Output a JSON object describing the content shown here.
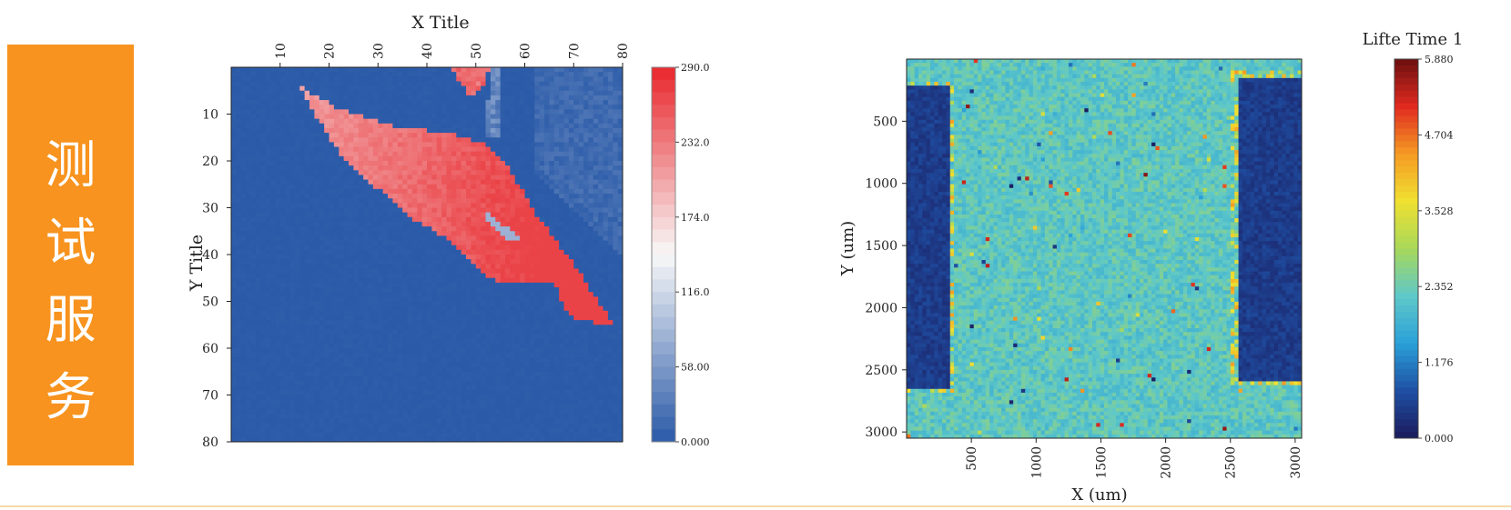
{
  "banner": {
    "chars": [
      "测",
      "试",
      "服",
      "务"
    ],
    "color": "#f7931e"
  },
  "chart_data": [
    {
      "type": "heatmap",
      "title": "",
      "xlabel": "X Title",
      "ylabel": "Y Title",
      "xaxis_position": "top",
      "xlim": [
        0,
        80
      ],
      "ylim": [
        0,
        80
      ],
      "yaxis_inverted": true,
      "x_ticks": [
        10,
        20,
        30,
        40,
        50,
        60,
        70,
        80
      ],
      "y_ticks": [
        10,
        20,
        30,
        40,
        50,
        60,
        70,
        80
      ],
      "colorbar": {
        "min": 0,
        "max": 290,
        "tick_labels": [
          "290.0",
          "232.0",
          "174.0",
          "116.0",
          "58.00",
          "0.000"
        ],
        "colors": [
          "#2a5aa8",
          "#f8f8f8",
          "#e8262b"
        ]
      },
      "background_value": 0,
      "regions": [
        {
          "name": "main-crystal",
          "value_range": [
            190,
            270
          ],
          "outline": [
            [
              14,
              4
            ],
            [
              22,
              9
            ],
            [
              35,
              13
            ],
            [
              45,
              14
            ],
            [
              51,
              16
            ],
            [
              56,
              20
            ],
            [
              62,
              31
            ],
            [
              70,
              42
            ],
            [
              77,
              53
            ],
            [
              78,
              55
            ],
            [
              70,
              54
            ],
            [
              68,
              51
            ],
            [
              66,
              46
            ],
            [
              56,
              46
            ],
            [
              53,
              45
            ],
            [
              45,
              37
            ],
            [
              38,
              33
            ],
            [
              30,
              26
            ],
            [
              22,
              18
            ],
            [
              17,
              10
            ]
          ]
        },
        {
          "name": "top-tip",
          "value_range": [
            220,
            260
          ],
          "outline": [
            [
              45,
              0
            ],
            [
              53,
              0
            ],
            [
              51,
              5
            ],
            [
              49,
              7
            ]
          ]
        },
        {
          "name": "faint-streak",
          "value_range": [
            20,
            60
          ],
          "outline": [
            [
              53,
              0
            ],
            [
              55,
              0
            ],
            [
              55,
              15
            ],
            [
              52,
              15
            ]
          ]
        },
        {
          "name": "right-noise-band",
          "value_range": [
            5,
            25
          ],
          "outline": [
            [
              62,
              0
            ],
            [
              80,
              0
            ],
            [
              80,
              40
            ],
            [
              62,
              22
            ]
          ]
        }
      ],
      "holes": [
        {
          "name": "inner-hole",
          "value": 80,
          "outline": [
            [
              52,
              31
            ],
            [
              56,
              34
            ],
            [
              60,
              37
            ],
            [
              57,
              37
            ],
            [
              53,
              34
            ]
          ]
        }
      ]
    },
    {
      "type": "heatmap",
      "title": "",
      "xlabel": "X (um)",
      "ylabel": "Y (um)",
      "xlim": [
        0,
        3050
      ],
      "ylim": [
        0,
        3050
      ],
      "yaxis_inverted": true,
      "x_ticks": [
        500,
        1000,
        1500,
        2000,
        2500,
        3000
      ],
      "y_ticks": [
        500,
        1000,
        1500,
        2000,
        2500,
        3000
      ],
      "colorbar": {
        "label": "Lifte Time 1",
        "min": 0,
        "max": 5.88,
        "tick_labels": [
          "5.880",
          "4.704",
          "3.528",
          "2.352",
          "1.176",
          "0.000"
        ],
        "colors": [
          "#1b1a5c",
          "#1f4fa3",
          "#2aa0d8",
          "#5fc8c8",
          "#a8d85a",
          "#f0e030",
          "#f59a23",
          "#e02a20",
          "#6a0f0f"
        ]
      },
      "background_value": 2.2,
      "dark_regions": [
        {
          "name": "left-pad",
          "value": 0.3,
          "x": [
            0,
            330
          ],
          "y": [
            220,
            2640
          ]
        },
        {
          "name": "right-pad",
          "value": 0.3,
          "x": [
            2560,
            3050
          ],
          "y": [
            150,
            2590
          ]
        }
      ]
    }
  ]
}
